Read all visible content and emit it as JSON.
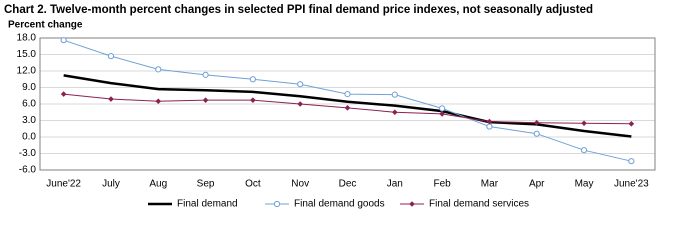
{
  "chart_data": {
    "type": "line",
    "title": "Chart 2. Twelve-month percent changes in selected PPI final demand price indexes, not seasonally adjusted",
    "y_label": "Percent change",
    "categories": [
      "June'22",
      "July",
      "Aug",
      "Sep",
      "Oct",
      "Nov",
      "Dec",
      "Jan",
      "Feb",
      "Mar",
      "Apr",
      "May",
      "June'23"
    ],
    "series": [
      {
        "name": "Final demand",
        "color": "#000000",
        "marker": "none",
        "values": [
          11.2,
          9.8,
          8.7,
          8.5,
          8.2,
          7.4,
          6.4,
          5.7,
          4.7,
          2.7,
          2.3,
          1.1,
          0.1
        ]
      },
      {
        "name": "Final demand goods",
        "color": "#6fa0d8",
        "marker": "circle",
        "values": [
          17.6,
          14.7,
          12.3,
          11.3,
          10.5,
          9.6,
          7.8,
          7.7,
          5.2,
          1.9,
          0.6,
          -2.4,
          -4.4
        ]
      },
      {
        "name": "Final demand services",
        "color": "#8b2252",
        "marker": "diamond",
        "values": [
          7.8,
          6.9,
          6.5,
          6.7,
          6.7,
          6.0,
          5.3,
          4.5,
          4.2,
          2.8,
          2.6,
          2.5,
          2.4
        ]
      }
    ],
    "ylim": [
      -6,
      18
    ],
    "yticks": [
      {
        "value": 18,
        "label": "18.0"
      },
      {
        "value": 15,
        "label": "15.0"
      },
      {
        "value": 12,
        "label": "12.0"
      },
      {
        "value": 9,
        "label": "9.0"
      },
      {
        "value": 6,
        "label": "6.0"
      },
      {
        "value": 3,
        "label": "3.0"
      },
      {
        "value": 0,
        "label": "0.0"
      },
      {
        "value": -3,
        "label": "-3.0"
      },
      {
        "value": -6,
        "label": "-6.0"
      }
    ],
    "grid": true,
    "legend": "bottom"
  }
}
